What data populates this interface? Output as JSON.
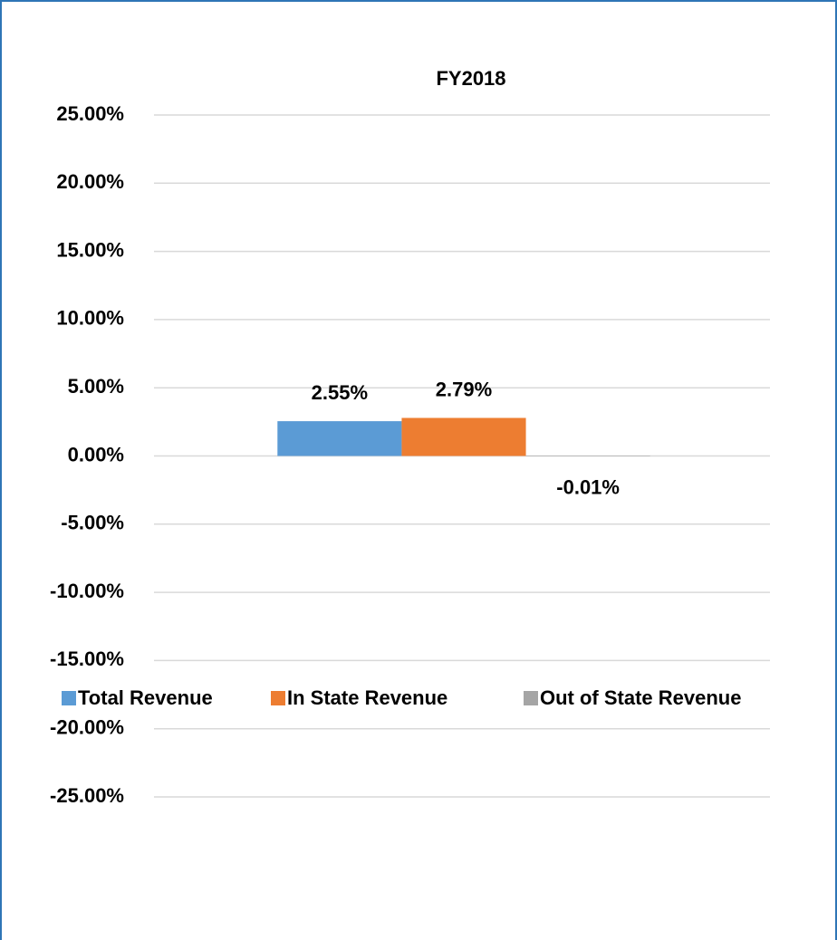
{
  "chart_data": {
    "type": "bar",
    "categories": [
      "FY2018"
    ],
    "series": [
      {
        "name": "Total Revenue",
        "color": "#5b9bd5",
        "values": [
          2.55
        ],
        "value_labels": [
          "2.55%"
        ]
      },
      {
        "name": "In State Revenue",
        "color": "#ed7d31",
        "values": [
          2.79
        ],
        "value_labels": [
          "2.79%"
        ]
      },
      {
        "name": "Out of State Revenue",
        "color": "#a5a5a5",
        "values": [
          -0.01
        ],
        "value_labels": [
          "-0.01%"
        ]
      }
    ],
    "ylim": [
      -25,
      25
    ],
    "yticks": [
      {
        "value": 25,
        "label": "25.00%"
      },
      {
        "value": 20,
        "label": "20.00%"
      },
      {
        "value": 15,
        "label": "15.00%"
      },
      {
        "value": 10,
        "label": "10.00%"
      },
      {
        "value": 5,
        "label": "5.00%"
      },
      {
        "value": 0,
        "label": "0.00%"
      },
      {
        "value": -5,
        "label": "-5.00%"
      },
      {
        "value": -10,
        "label": "-10.00%"
      },
      {
        "value": -15,
        "label": "-15.00%"
      },
      {
        "value": -20,
        "label": "-20.00%"
      },
      {
        "value": -25,
        "label": "-25.00%"
      }
    ],
    "grid": true,
    "legend": "bottom"
  }
}
